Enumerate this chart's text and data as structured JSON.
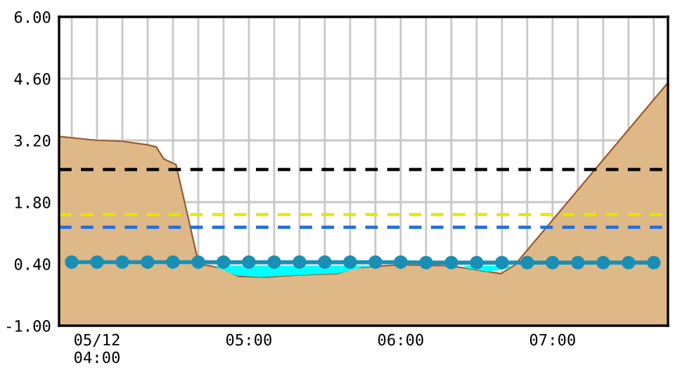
{
  "chart_data": {
    "type": "line",
    "xlim": [
      3.75,
      7.76
    ],
    "ylim": [
      -1.0,
      6.0
    ],
    "yticks": [
      {
        "value": -1.0,
        "label": "-1.00"
      },
      {
        "value": 0.4,
        "label": "0.40"
      },
      {
        "value": 1.8,
        "label": "1.80"
      },
      {
        "value": 3.2,
        "label": "3.20"
      },
      {
        "value": 4.6,
        "label": "4.60"
      },
      {
        "value": 6.0,
        "label": "6.00"
      }
    ],
    "xticks": [
      {
        "value": 3.8333,
        "label": null
      },
      {
        "value": 4,
        "label": "05/12\n04:00"
      },
      {
        "value": 4.1667,
        "label": null
      },
      {
        "value": 4.3333,
        "label": null
      },
      {
        "value": 4.5,
        "label": null
      },
      {
        "value": 4.6667,
        "label": null
      },
      {
        "value": 4.8333,
        "label": null
      },
      {
        "value": 5,
        "label": "05:00"
      },
      {
        "value": 5.1667,
        "label": null
      },
      {
        "value": 5.3333,
        "label": null
      },
      {
        "value": 5.5,
        "label": null
      },
      {
        "value": 5.6667,
        "label": null
      },
      {
        "value": 5.8333,
        "label": null
      },
      {
        "value": 6,
        "label": "06:00"
      },
      {
        "value": 6.1667,
        "label": null
      },
      {
        "value": 6.3333,
        "label": null
      },
      {
        "value": 6.5,
        "label": null
      },
      {
        "value": 6.6667,
        "label": null
      },
      {
        "value": 6.8333,
        "label": null
      },
      {
        "value": 7,
        "label": "07:00"
      },
      {
        "value": 7.1667,
        "label": null
      },
      {
        "value": 7.3333,
        "label": null
      },
      {
        "value": 7.5,
        "label": null
      },
      {
        "value": 7.6667,
        "label": null
      }
    ],
    "grid": true,
    "series": [
      {
        "type": "area",
        "color": "#deb887",
        "x": [
          3.75,
          4.0,
          4.1667,
          4.3333,
          4.39,
          4.44,
          4.52,
          4.67,
          4.83,
          4.93,
          5.11,
          5.33,
          5.58,
          5.69,
          6.0,
          6.32,
          6.66,
          6.75,
          7.76
        ],
        "values": [
          3.29,
          3.2,
          3.18,
          3.1,
          3.05,
          2.78,
          2.65,
          0.4,
          0.3,
          0.12,
          0.1,
          0.15,
          0.18,
          0.31,
          0.38,
          0.36,
          0.18,
          0.37,
          4.51
        ]
      },
      {
        "type": "area",
        "color": "#00ffff",
        "x": [
          4.78,
          4.92,
          5.08,
          5.25,
          5.42,
          5.58,
          5.75,
          5.85,
          6.1,
          6.42,
          6.58,
          6.72
        ],
        "values": [
          0.36,
          0.36,
          0.36,
          0.36,
          0.36,
          0.36,
          0.36,
          0.36,
          null,
          0.36,
          0.36,
          0.36
        ]
      },
      {
        "color": "#1a8fb5",
        "marker": "circle",
        "x": [
          3.8333,
          4,
          4.1667,
          4.3333,
          4.5,
          4.6667,
          4.8333,
          5,
          5.1667,
          5.3333,
          5.5,
          5.6667,
          5.8333,
          6,
          6.1667,
          6.3333,
          6.5,
          6.6667,
          6.8333,
          7,
          7.1667,
          7.3333,
          7.5,
          7.6667
        ],
        "values": [
          0.44,
          0.44,
          0.44,
          0.44,
          0.44,
          0.44,
          0.44,
          0.44,
          0.44,
          0.44,
          0.44,
          0.44,
          0.44,
          0.44,
          0.43,
          0.43,
          0.43,
          0.43,
          0.43,
          0.43,
          0.43,
          0.43,
          0.43,
          0.43
        ]
      }
    ],
    "ref_lines": [
      {
        "axis": "y",
        "value": 2.54,
        "color": "#000000",
        "line_style": "dashed"
      },
      {
        "axis": "y",
        "value": 1.52,
        "color": "#e6e600",
        "line_style": "dashed"
      },
      {
        "axis": "y",
        "value": 1.23,
        "color": "#1e6fe0",
        "line_style": "dashed"
      }
    ]
  }
}
